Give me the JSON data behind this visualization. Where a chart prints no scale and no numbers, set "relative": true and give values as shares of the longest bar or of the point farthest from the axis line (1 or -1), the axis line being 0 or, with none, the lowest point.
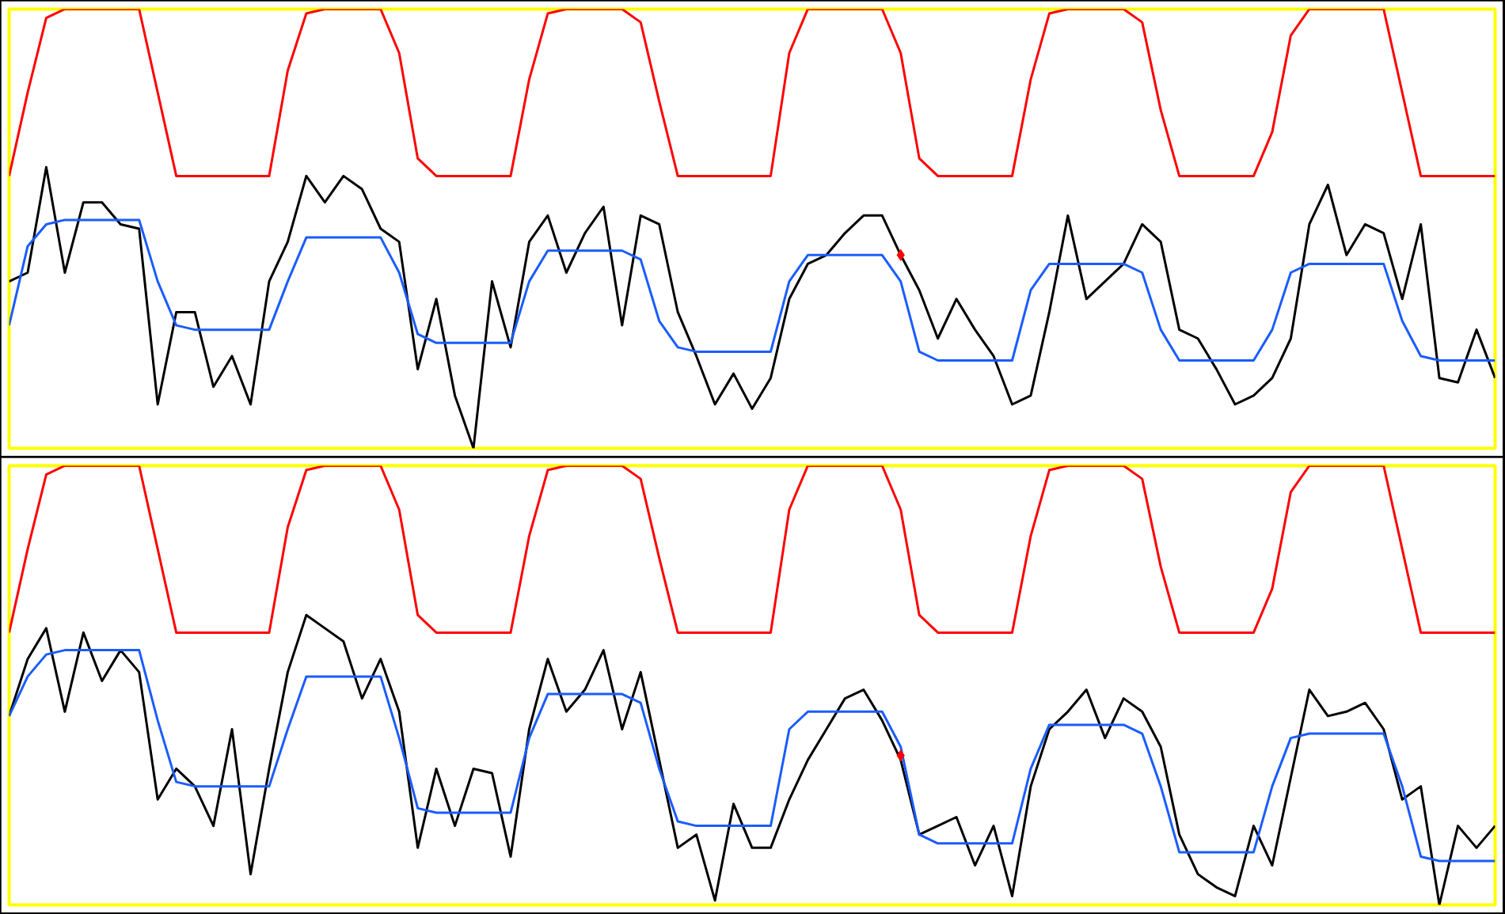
{
  "chart_data": [
    {
      "type": "line",
      "relative": true,
      "tick_labels": false,
      "marker": "none",
      "line_style": "solid",
      "categories": [
        null,
        null,
        null,
        null,
        null,
        null,
        null,
        null,
        null,
        null,
        null,
        null,
        null,
        null,
        null,
        null,
        null,
        null,
        null,
        null,
        null,
        null,
        null,
        null,
        null,
        null,
        null,
        null,
        null,
        null,
        null,
        null,
        null,
        null,
        null,
        null,
        null,
        null,
        null,
        null,
        null,
        null,
        null,
        null,
        null,
        null,
        null,
        null,
        null,
        null,
        null,
        null,
        null,
        null,
        null,
        null,
        null,
        null,
        null,
        null,
        null,
        null,
        null,
        null,
        null,
        null,
        null,
        null,
        null,
        null,
        null,
        null,
        null,
        null,
        null,
        null,
        null,
        null,
        null,
        null,
        null
      ],
      "series": [
        {
          "color": "#ff0000",
          "values": [
            0.62,
            0.81,
            0.98,
            1,
            1,
            1,
            1,
            1,
            0.81,
            0.62,
            0.62,
            0.62,
            0.62,
            0.62,
            0.62,
            0.86,
            0.99,
            1,
            1,
            1,
            1,
            0.9,
            0.66,
            0.62,
            0.62,
            0.62,
            0.62,
            0.62,
            0.84,
            0.99,
            1,
            1,
            1,
            1,
            0.97,
            0.79,
            0.62,
            0.62,
            0.62,
            0.62,
            0.62,
            0.62,
            0.9,
            1,
            1,
            1,
            1,
            1,
            0.9,
            0.66,
            0.62,
            0.62,
            0.62,
            0.62,
            0.62,
            0.84,
            0.99,
            1,
            1,
            1,
            1,
            0.97,
            0.77,
            0.62,
            0.62,
            0.62,
            0.62,
            0.62,
            0.72,
            0.94,
            1,
            1,
            1,
            1,
            1,
            0.81,
            0.62,
            0.62,
            0.62,
            0.62,
            0.62
          ]
        },
        {
          "color": "#000000",
          "values": [
            0.38,
            0.4,
            0.64,
            0.4,
            0.56,
            0.56,
            0.51,
            0.5,
            0.1,
            0.31,
            0.31,
            0.14,
            0.21,
            0.1,
            0.38,
            0.47,
            0.62,
            0.56,
            0.62,
            0.59,
            0.5,
            0.47,
            0.18,
            0.34,
            0.12,
            0,
            0.38,
            0.23,
            0.47,
            0.53,
            0.4,
            0.49,
            0.55,
            0.28,
            0.53,
            0.51,
            0.31,
            0.21,
            0.1,
            0.17,
            0.09,
            0.16,
            0.34,
            0.42,
            0.44,
            0.49,
            0.53,
            0.53,
            0.44,
            0.36,
            0.25,
            0.34,
            0.27,
            0.21,
            0.1,
            0.12,
            0.31,
            0.53,
            0.34,
            0.38,
            0.42,
            0.51,
            0.47,
            0.27,
            0.25,
            0.18,
            0.1,
            0.12,
            0.16,
            0.25,
            0.51,
            0.6,
            0.44,
            0.51,
            0.49,
            0.34,
            0.51,
            0.16,
            0.15,
            0.27,
            0.16
          ]
        },
        {
          "color": "#1a5cff",
          "values": [
            0.28,
            0.46,
            0.51,
            0.52,
            0.52,
            0.52,
            0.52,
            0.52,
            0.38,
            0.28,
            0.27,
            0.27,
            0.27,
            0.27,
            0.27,
            0.38,
            0.48,
            0.48,
            0.48,
            0.48,
            0.48,
            0.4,
            0.26,
            0.24,
            0.24,
            0.24,
            0.24,
            0.24,
            0.38,
            0.45,
            0.45,
            0.45,
            0.45,
            0.45,
            0.43,
            0.29,
            0.23,
            0.22,
            0.22,
            0.22,
            0.22,
            0.22,
            0.38,
            0.44,
            0.44,
            0.44,
            0.44,
            0.44,
            0.38,
            0.22,
            0.2,
            0.2,
            0.2,
            0.2,
            0.2,
            0.36,
            0.42,
            0.42,
            0.42,
            0.42,
            0.42,
            0.4,
            0.27,
            0.2,
            0.2,
            0.2,
            0.2,
            0.2,
            0.27,
            0.4,
            0.42,
            0.42,
            0.42,
            0.42,
            0.42,
            0.29,
            0.21,
            0.2,
            0.2,
            0.2,
            0.2
          ]
        },
        {
          "marker": "diamond",
          "color": "#ff0000",
          "values": [
            null,
            null,
            null,
            null,
            null,
            null,
            null,
            null,
            null,
            null,
            null,
            null,
            null,
            null,
            null,
            null,
            null,
            null,
            null,
            null,
            null,
            null,
            null,
            null,
            null,
            null,
            null,
            null,
            null,
            null,
            null,
            null,
            null,
            null,
            null,
            null,
            null,
            null,
            null,
            null,
            null,
            null,
            null,
            null,
            null,
            null,
            null,
            null,
            0.44,
            null,
            null,
            null,
            null,
            null,
            null,
            null,
            null,
            null,
            null,
            null,
            null,
            null,
            null,
            null,
            null,
            null,
            null,
            null,
            null,
            null,
            null,
            null,
            null,
            null,
            null,
            null,
            null,
            null,
            null,
            null,
            null
          ]
        }
      ]
    },
    {
      "type": "line",
      "relative": true,
      "tick_labels": false,
      "marker": "none",
      "line_style": "solid",
      "categories": [
        null,
        null,
        null,
        null,
        null,
        null,
        null,
        null,
        null,
        null,
        null,
        null,
        null,
        null,
        null,
        null,
        null,
        null,
        null,
        null,
        null,
        null,
        null,
        null,
        null,
        null,
        null,
        null,
        null,
        null,
        null,
        null,
        null,
        null,
        null,
        null,
        null,
        null,
        null,
        null,
        null,
        null,
        null,
        null,
        null,
        null,
        null,
        null,
        null,
        null,
        null,
        null,
        null,
        null,
        null,
        null,
        null,
        null,
        null,
        null,
        null,
        null,
        null,
        null,
        null,
        null,
        null,
        null,
        null,
        null,
        null,
        null,
        null,
        null,
        null,
        null,
        null,
        null,
        null,
        null,
        null
      ],
      "series": [
        {
          "color": "#ff0000",
          "values": [
            0.62,
            0.81,
            0.98,
            1,
            1,
            1,
            1,
            1,
            0.81,
            0.62,
            0.62,
            0.62,
            0.62,
            0.62,
            0.62,
            0.86,
            0.99,
            1,
            1,
            1,
            1,
            0.9,
            0.66,
            0.62,
            0.62,
            0.62,
            0.62,
            0.62,
            0.84,
            0.99,
            1,
            1,
            1,
            1,
            0.97,
            0.79,
            0.62,
            0.62,
            0.62,
            0.62,
            0.62,
            0.62,
            0.9,
            1,
            1,
            1,
            1,
            1,
            0.9,
            0.66,
            0.62,
            0.62,
            0.62,
            0.62,
            0.62,
            0.84,
            0.99,
            1,
            1,
            1,
            1,
            0.97,
            0.77,
            0.62,
            0.62,
            0.62,
            0.62,
            0.62,
            0.72,
            0.94,
            1,
            1,
            1,
            1,
            1,
            0.81,
            0.62,
            0.62,
            0.62,
            0.62,
            0.62
          ]
        },
        {
          "color": "#000000",
          "values": [
            0.43,
            0.56,
            0.63,
            0.44,
            0.62,
            0.51,
            0.58,
            0.53,
            0.24,
            0.31,
            0.27,
            0.18,
            0.4,
            0.07,
            0.31,
            0.53,
            0.66,
            0.63,
            0.6,
            0.47,
            0.56,
            0.44,
            0.13,
            0.31,
            0.18,
            0.31,
            0.3,
            0.11,
            0.4,
            0.56,
            0.44,
            0.49,
            0.58,
            0.4,
            0.53,
            0.33,
            0.13,
            0.16,
            0.01,
            0.23,
            0.13,
            0.13,
            0.24,
            0.33,
            0.4,
            0.47,
            0.49,
            0.42,
            0.33,
            0.16,
            0.18,
            0.2,
            0.09,
            0.18,
            0.02,
            0.27,
            0.4,
            0.44,
            0.49,
            0.38,
            0.47,
            0.44,
            0.36,
            0.16,
            0.07,
            0.04,
            0.02,
            0.18,
            0.09,
            0.29,
            0.49,
            0.43,
            0.44,
            0.46,
            0.4,
            0.24,
            0.27,
            0,
            0.18,
            0.13,
            0.18
          ]
        },
        {
          "color": "#1a5cff",
          "values": [
            0.43,
            0.52,
            0.57,
            0.58,
            0.58,
            0.58,
            0.58,
            0.58,
            0.42,
            0.28,
            0.27,
            0.27,
            0.27,
            0.27,
            0.27,
            0.4,
            0.52,
            0.52,
            0.52,
            0.52,
            0.52,
            0.38,
            0.22,
            0.21,
            0.21,
            0.21,
            0.21,
            0.21,
            0.38,
            0.48,
            0.48,
            0.48,
            0.48,
            0.48,
            0.46,
            0.31,
            0.19,
            0.18,
            0.18,
            0.18,
            0.18,
            0.18,
            0.4,
            0.44,
            0.44,
            0.44,
            0.44,
            0.44,
            0.36,
            0.16,
            0.14,
            0.14,
            0.14,
            0.14,
            0.14,
            0.31,
            0.41,
            0.41,
            0.41,
            0.41,
            0.41,
            0.39,
            0.27,
            0.12,
            0.12,
            0.12,
            0.12,
            0.12,
            0.27,
            0.38,
            0.39,
            0.39,
            0.39,
            0.39,
            0.39,
            0.27,
            0.11,
            0.1,
            0.1,
            0.1,
            0.1
          ]
        },
        {
          "marker": "diamond",
          "color": "#ff0000",
          "values": [
            null,
            null,
            null,
            null,
            null,
            null,
            null,
            null,
            null,
            null,
            null,
            null,
            null,
            null,
            null,
            null,
            null,
            null,
            null,
            null,
            null,
            null,
            null,
            null,
            null,
            null,
            null,
            null,
            null,
            null,
            null,
            null,
            null,
            null,
            null,
            null,
            null,
            null,
            null,
            null,
            null,
            null,
            null,
            null,
            null,
            null,
            null,
            null,
            0.34,
            null,
            null,
            null,
            null,
            null,
            null,
            null,
            null,
            null,
            null,
            null,
            null,
            null,
            null,
            null,
            null,
            null,
            null,
            null,
            null,
            null,
            null,
            null,
            null,
            null,
            null,
            null,
            null,
            null,
            null,
            null,
            null
          ]
        }
      ]
    }
  ]
}
